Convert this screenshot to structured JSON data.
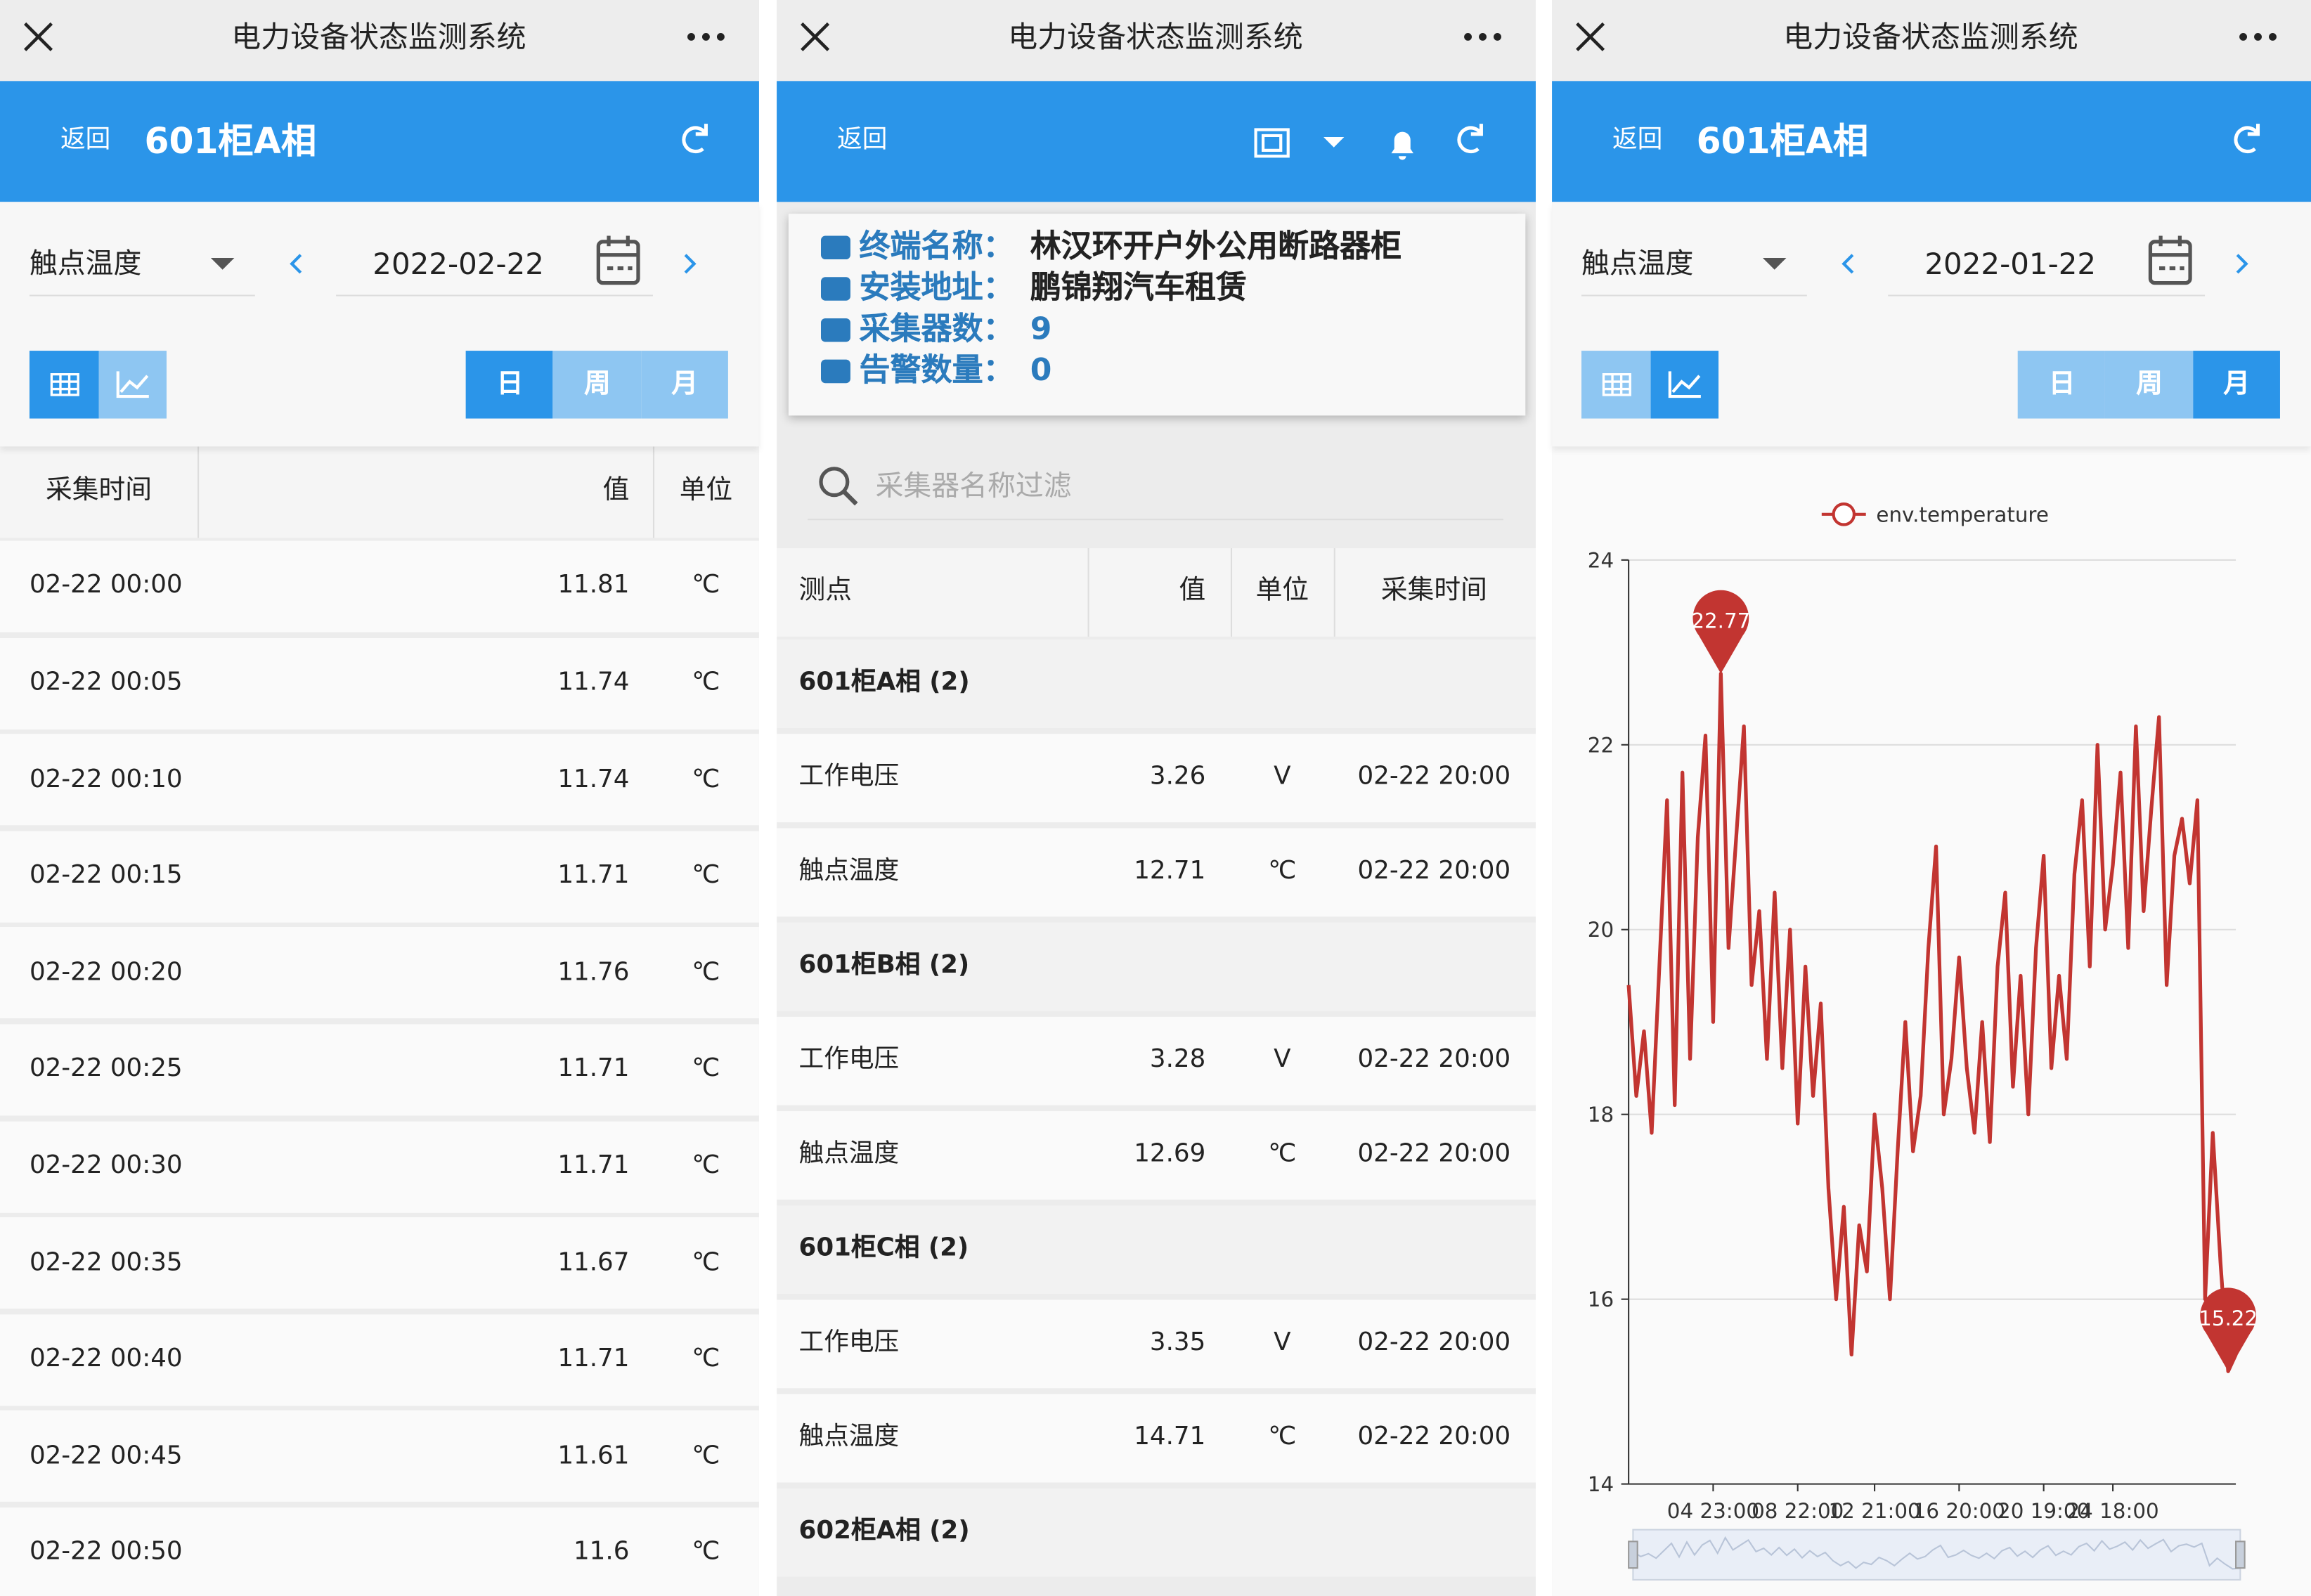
{
  "panels": [
    {
      "window_title": "电力设备状态监测系统",
      "back": "返回",
      "header_title": "601柜A相",
      "metric": "触点温度",
      "date": "2022-02-22",
      "periods": [
        "日",
        "周",
        "月"
      ],
      "active_period": 0,
      "view": "table",
      "table": {
        "headers": [
          "采集时间",
          "值",
          "单位"
        ],
        "rows": [
          [
            "02-22 00:00",
            11.81,
            "℃"
          ],
          [
            "02-22 00:05",
            11.74,
            "℃"
          ],
          [
            "02-22 00:10",
            11.74,
            "℃"
          ],
          [
            "02-22 00:15",
            11.71,
            "℃"
          ],
          [
            "02-22 00:20",
            11.76,
            "℃"
          ],
          [
            "02-22 00:25",
            11.71,
            "℃"
          ],
          [
            "02-22 00:30",
            11.71,
            "℃"
          ],
          [
            "02-22 00:35",
            11.67,
            "℃"
          ],
          [
            "02-22 00:40",
            11.71,
            "℃"
          ],
          [
            "02-22 00:45",
            11.61,
            "℃"
          ],
          [
            "02-22 00:50",
            11.6,
            "℃"
          ]
        ]
      }
    },
    {
      "window_title": "电力设备状态监测系统",
      "back": "返回",
      "info": [
        [
          "终端名称：",
          "林汉环开户外公用断路器柜"
        ],
        [
          "安装地址：",
          "鹏锦翔汽车租赁"
        ],
        [
          "采集器数：",
          "9"
        ],
        [
          "告警数量：",
          "0"
        ]
      ],
      "search_placeholder": "采集器名称过滤",
      "table": {
        "headers": [
          "测点",
          "值",
          "单位",
          "采集时间"
        ],
        "groups": [
          {
            "name": "601柜A相 (2)",
            "rows": [
              [
                "工作电压",
                3.26,
                "V",
                "02-22 20:00"
              ],
              [
                "触点温度",
                12.71,
                "℃",
                "02-22 20:00"
              ]
            ]
          },
          {
            "name": "601柜B相 (2)",
            "rows": [
              [
                "工作电压",
                3.28,
                "V",
                "02-22 20:00"
              ],
              [
                "触点温度",
                12.69,
                "℃",
                "02-22 20:00"
              ]
            ]
          },
          {
            "name": "601柜C相 (2)",
            "rows": [
              [
                "工作电压",
                3.35,
                "V",
                "02-22 20:00"
              ],
              [
                "触点温度",
                14.71,
                "℃",
                "02-22 20:00"
              ]
            ]
          },
          {
            "name": "602柜A相 (2)",
            "rows": []
          }
        ]
      }
    },
    {
      "window_title": "电力设备状态监测系统",
      "back": "返回",
      "header_title": "601柜A相",
      "metric": "触点温度",
      "date": "2022-01-22",
      "periods": [
        "日",
        "周",
        "月"
      ],
      "active_period": 2,
      "view": "chart"
    }
  ],
  "chart_data": {
    "type": "line",
    "categories": [
      null,
      null,
      null,
      null,
      null,
      null,
      null,
      null,
      null,
      null,
      null,
      "04 23:00",
      null,
      null,
      null,
      null,
      null,
      null,
      null,
      null,
      null,
      null,
      "08 22:00",
      null,
      null,
      null,
      null,
      null,
      null,
      null,
      null,
      null,
      "12 21:00",
      null,
      null,
      null,
      null,
      null,
      null,
      null,
      null,
      null,
      null,
      "16 20:00",
      null,
      null,
      null,
      null,
      null,
      null,
      null,
      null,
      null,
      null,
      "20 19:00",
      null,
      null,
      null,
      null,
      null,
      null,
      null,
      null,
      "24 18:00",
      null,
      null,
      null,
      null,
      null,
      null,
      null,
      null,
      null,
      null,
      null,
      null,
      null,
      null,
      null,
      null
    ],
    "series": [
      {
        "name": "env.temperature",
        "color": "#c23531",
        "mark_points": [
          "max",
          "min"
        ],
        "values": [
          19.4,
          18.2,
          18.9,
          17.8,
          19.6,
          21.4,
          18.1,
          21.7,
          18.6,
          21.0,
          22.1,
          19.0,
          22.77,
          19.8,
          21.0,
          22.2,
          19.4,
          20.2,
          18.6,
          20.4,
          18.5,
          20.0,
          17.9,
          19.6,
          18.2,
          19.2,
          17.2,
          16.0,
          17.0,
          15.4,
          16.8,
          16.3,
          18.0,
          17.2,
          16.0,
          17.6,
          19.0,
          17.6,
          18.2,
          19.8,
          20.9,
          18.0,
          18.6,
          19.7,
          18.5,
          17.8,
          19.0,
          17.7,
          19.6,
          20.4,
          18.3,
          19.5,
          18.0,
          19.8,
          20.8,
          18.5,
          19.5,
          18.6,
          20.6,
          21.4,
          19.6,
          22.0,
          20.0,
          20.7,
          21.7,
          19.8,
          22.2,
          20.2,
          21.3,
          22.3,
          19.4,
          20.8,
          21.2,
          20.5,
          21.4,
          16.0,
          17.8,
          16.4,
          15.22,
          15.4
        ]
      }
    ],
    "ylim": [
      14,
      24
    ],
    "yticks": [
      14,
      16,
      18,
      20,
      22,
      24
    ],
    "grid": true,
    "legend": "top",
    "data_zoom": true
  }
}
